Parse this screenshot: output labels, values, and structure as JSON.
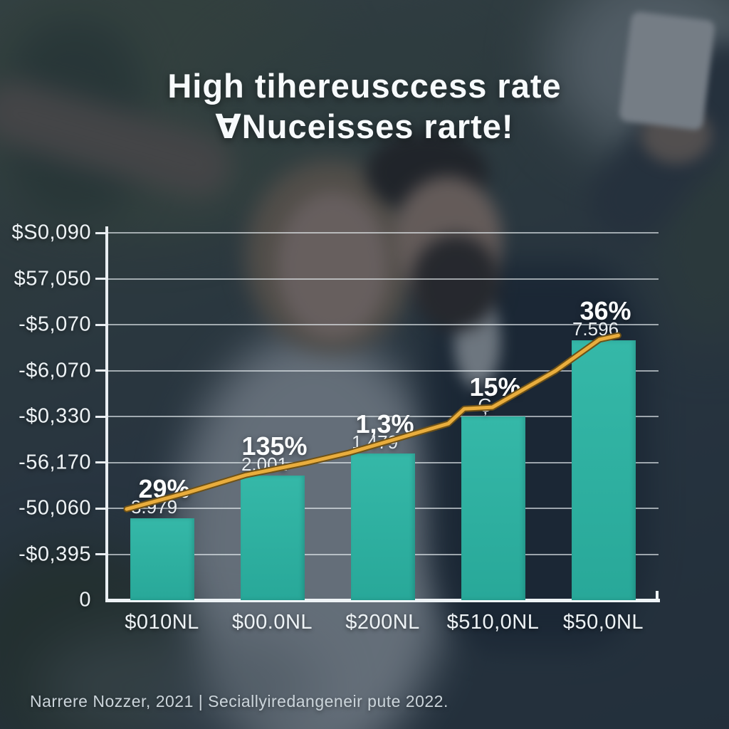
{
  "title": {
    "line1": "High tihereusccess rate",
    "line2": "∀Nuceisses rarte!"
  },
  "caption": "Narrere Nozzer, 2021 | Seciallyiredangeneir pute 2022.",
  "colors": {
    "bar_teal": "#2fb3a4",
    "line_gold": "#e9ad3d",
    "line_gold_edge": "#6e5116",
    "axis_white": "#e9eef2",
    "text_white": "#f7fafc"
  },
  "chart_data": {
    "type": "bar",
    "title": "High tihereusccess rate ∀Nuceisses rarte!",
    "categories": [
      "$010NL",
      "$00.0NL",
      "$200NL",
      "$510,0NL",
      "$50,0NL"
    ],
    "y_tick_labels": [
      "$S0,090",
      "$57,050",
      "-$5,070",
      "-$6,070",
      "-$0,330",
      "-56,170",
      "-50,060",
      "-$0,395",
      "0"
    ],
    "grid": "on",
    "series": [
      {
        "name": "bars",
        "type": "bar",
        "values_relative": [
          0.221,
          0.337,
          0.396,
          0.496,
          0.702
        ],
        "point_labels": [
          {
            "pct": "29%",
            "sub": "3.979"
          },
          {
            "pct": "135%",
            "sub": "2.001"
          },
          {
            "pct": "1,3%",
            "sub": "1,479"
          },
          {
            "pct": "15%",
            "sub": "Ģ"
          },
          {
            "pct": "36%",
            "sub": "7.596"
          }
        ]
      },
      {
        "name": "trend-line",
        "type": "line",
        "points_relative": [
          [
            0.036,
            0.754
          ],
          [
            0.145,
            0.71
          ],
          [
            0.252,
            0.662
          ],
          [
            0.361,
            0.629
          ],
          [
            0.439,
            0.602
          ],
          [
            0.51,
            0.571
          ],
          [
            0.619,
            0.523
          ],
          [
            0.648,
            0.483
          ],
          [
            0.699,
            0.479
          ],
          [
            0.813,
            0.381
          ],
          [
            0.893,
            0.296
          ],
          [
            0.927,
            0.285
          ]
        ]
      }
    ]
  }
}
